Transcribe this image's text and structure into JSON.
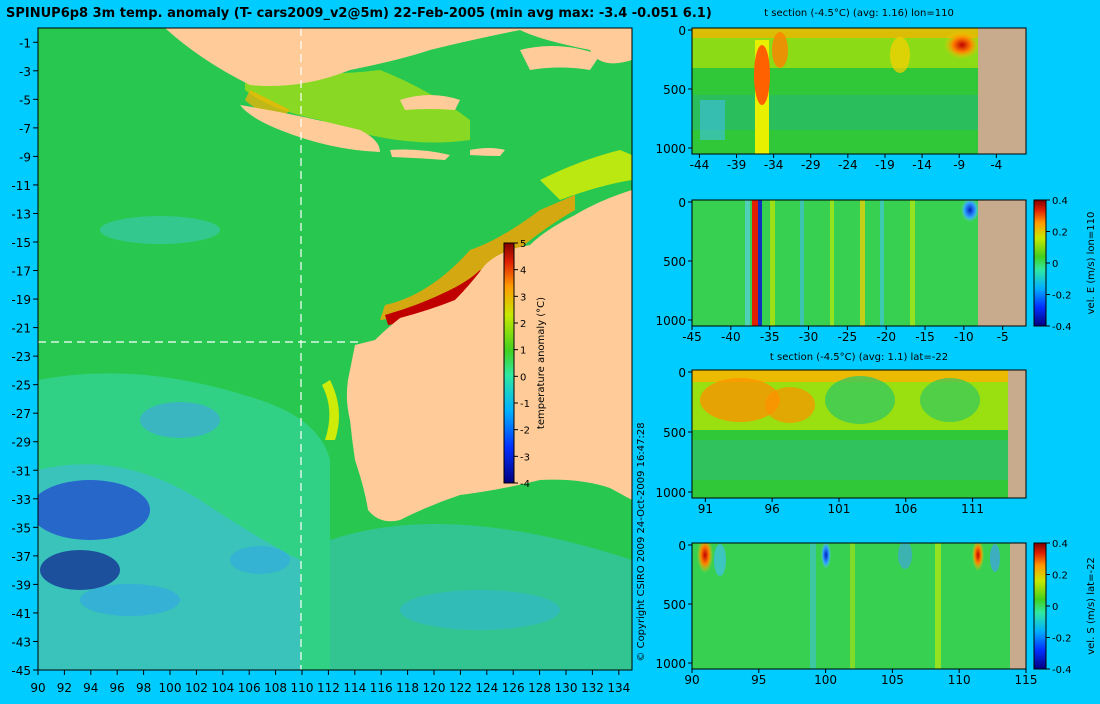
{
  "page": {
    "background": "#00ccff",
    "land_color": "#ffcc99",
    "section_land_color": "#c8aa8c",
    "copyright": "© Copyright CSIRO 2009   24-Oct-2009 16:47:28"
  },
  "chart_data": [
    {
      "type": "heatmap",
      "title": "SPINUP6p8 3m temp. anomaly (T- cars2009_v2@5m) 22-Feb-2005 (min avg max: -3.4 -0.051 6.1)",
      "xlim": [
        90,
        135
      ],
      "ylim": [
        -45,
        0
      ],
      "x_ticks": [
        "90",
        "92",
        "94",
        "96",
        "98",
        "100",
        "102",
        "104",
        "106",
        "108",
        "110",
        "112",
        "114",
        "116",
        "118",
        "120",
        "122",
        "124",
        "126",
        "128",
        "130",
        "132",
        "134"
      ],
      "y_ticks": [
        "-1",
        "-3",
        "-5",
        "-7",
        "-9",
        "-11",
        "-13",
        "-15",
        "-17",
        "-19",
        "-21",
        "-23",
        "-25",
        "-27",
        "-29",
        "-31",
        "-33",
        "-35",
        "-37",
        "-39",
        "-41",
        "-43",
        "-45"
      ],
      "crosshair": {
        "lon": 110,
        "lat": -22
      },
      "colorbar": {
        "label": "temperature anomaly (°C)",
        "range": [
          -4,
          5
        ],
        "ticks": [
          "5",
          "4",
          "3",
          "2",
          "1",
          "0",
          "-1",
          "-2",
          "-3",
          "-4"
        ]
      }
    },
    {
      "type": "heatmap",
      "title": "t section (-4.5°C) (avg: 1.16) lon=110",
      "xlim": [
        -45,
        0
      ],
      "ylim": [
        0,
        1000
      ],
      "x_ticks": [
        "-44",
        "-39",
        "-34",
        "-29",
        "-24",
        "-19",
        "-14",
        "-9",
        "-4"
      ],
      "y_ticks": [
        "0",
        "500",
        "1000"
      ]
    },
    {
      "type": "heatmap",
      "title": "",
      "xlim": [
        -45,
        -2
      ],
      "ylim": [
        0,
        1000
      ],
      "x_ticks": [
        "-45",
        "-40",
        "-35",
        "-30",
        "-25",
        "-20",
        "-15",
        "-10",
        "-5"
      ],
      "y_ticks": [
        "0",
        "500",
        "1000"
      ],
      "colorbar": {
        "label": "vel. E (m/s) lon=110",
        "range": [
          -0.4,
          0.4
        ],
        "ticks": [
          "0.4",
          "0.2",
          "0",
          "-0.2",
          "-0.4"
        ]
      }
    },
    {
      "type": "heatmap",
      "title": "t section (-4.5°C) (avg: 1.1) lat=-22",
      "xlim": [
        90,
        115
      ],
      "ylim": [
        0,
        1000
      ],
      "x_ticks": [
        "91",
        "96",
        "101",
        "106",
        "111"
      ],
      "y_ticks": [
        "0",
        "500",
        "1000"
      ]
    },
    {
      "type": "heatmap",
      "title": "",
      "xlim": [
        90,
        115
      ],
      "ylim": [
        0,
        1000
      ],
      "x_ticks": [
        "90",
        "95",
        "100",
        "105",
        "110",
        "115"
      ],
      "y_ticks": [
        "0",
        "500",
        "1000"
      ],
      "colorbar": {
        "label": "vel. S (m/s) lat=-22",
        "range": [
          -0.4,
          0.4
        ],
        "ticks": [
          "0.4",
          "0.2",
          "0",
          "-0.2",
          "-0.4"
        ]
      }
    }
  ]
}
